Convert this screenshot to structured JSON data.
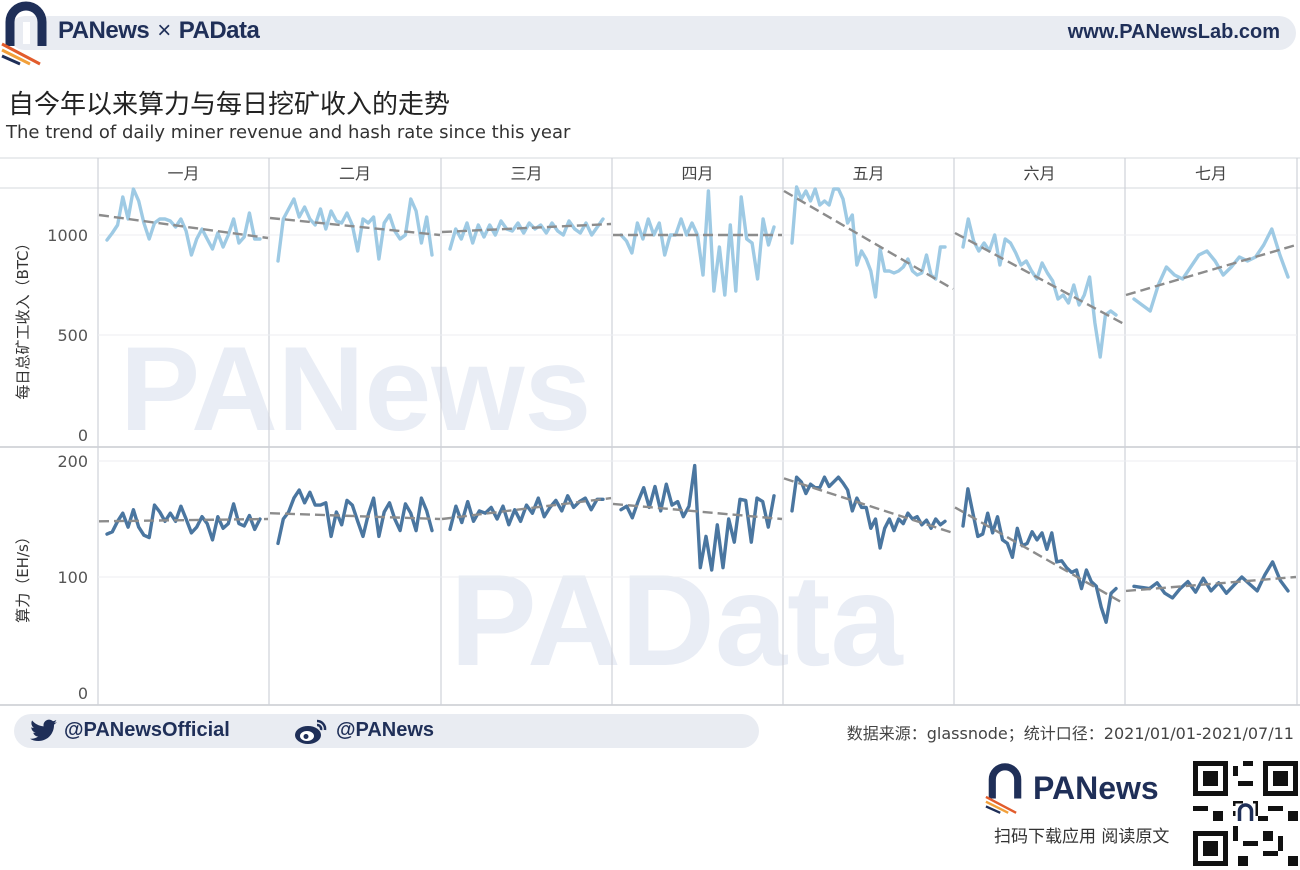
{
  "header": {
    "brand_left": "PANews",
    "brand_sep": "×",
    "brand_right": "PAData",
    "site": "www.PANewsLab.com"
  },
  "title": "自今年以来算力与每日挖矿收入的走势",
  "subtitle": "The trend of daily miner revenue and hash rate since this year",
  "footer": {
    "twitter": "@PANewsOfficial",
    "weibo": "@PANews",
    "source": "数据来源：glassnode；统计口径：2021/01/01-2021/07/11",
    "bottom_brand": "PANews",
    "scan_text": "扫码下载应用  阅读原文"
  },
  "colors": {
    "revenue_line": "#9ecae4",
    "hashrate_line": "#4a76a0",
    "trend_line": "#8c8c8c",
    "brand_navy": "#1f2f58",
    "brand_orange": "#e25c2c"
  },
  "chart_data": {
    "type": "line",
    "months": [
      "一月",
      "二月",
      "三月",
      "四月",
      "五月",
      "六月",
      "七月"
    ],
    "panels": [
      {
        "name": "revenue",
        "ylabel": "每日总矿工收入（BTC）",
        "ylim": [
          0,
          1300
        ],
        "yticks": [
          0,
          500,
          1000
        ],
        "series_by_month": [
          [
            975,
            1010,
            1050,
            1190,
            1080,
            1230,
            1170,
            1060,
            980,
            1060,
            1080,
            1080,
            1070,
            1040,
            1080,
            1020,
            900,
            980,
            1030,
            980,
            930,
            1010,
            940,
            1000,
            1080,
            960,
            990,
            1110,
            980,
            980
          ],
          [
            870,
            1080,
            1130,
            1180,
            1090,
            1140,
            1080,
            1050,
            1130,
            1030,
            1120,
            1070,
            1060,
            1110,
            1050,
            920,
            1080,
            1060,
            1090,
            880,
            1060,
            1100,
            1020,
            980,
            1000,
            1180,
            1120,
            960,
            1090,
            900
          ],
          [
            930,
            1030,
            980,
            1060,
            960,
            1050,
            990,
            1050,
            1000,
            1070,
            1030,
            1020,
            1060,
            1010,
            1060,
            1030,
            1050,
            1010,
            1060,
            1020,
            1000,
            1070,
            1030,
            1010,
            1060,
            1000,
            1040,
            1080
          ],
          [
            1000,
            970,
            910,
            1060,
            980,
            1080,
            1000,
            1060,
            900,
            1000,
            1000,
            1080,
            1000,
            1060,
            1000,
            800,
            1220,
            720,
            940,
            700,
            1050,
            720,
            1190,
            980,
            960,
            780,
            1080,
            950,
            1040
          ],
          [
            960,
            1240,
            1180,
            1220,
            1170,
            1230,
            1150,
            1170,
            1150,
            1230,
            1230,
            1180,
            1060,
            1100,
            850,
            920,
            880,
            820,
            690,
            930,
            820,
            820,
            810,
            820,
            840,
            880,
            820,
            800,
            810,
            900,
            800,
            780,
            940,
            940
          ],
          [
            940,
            1080,
            970,
            920,
            960,
            920,
            1000,
            850,
            980,
            960,
            910,
            850,
            870,
            820,
            780,
            860,
            810,
            770,
            680,
            700,
            660,
            750,
            650,
            700,
            790,
            560,
            390,
            600,
            620,
            600
          ],
          [
            680,
            650,
            620,
            750,
            840,
            800,
            780,
            840,
            900,
            920,
            870,
            800,
            840,
            890,
            870,
            890,
            950,
            1030,
            900,
            790
          ]
        ],
        "trend_by_month": [
          [
            1100,
            985
          ],
          [
            1085,
            1000
          ],
          [
            1015,
            1055
          ],
          [
            1000,
            1000
          ],
          [
            1220,
            730
          ],
          [
            1010,
            555
          ],
          [
            700,
            950
          ]
        ]
      },
      {
        "name": "hashrate",
        "ylabel": "算力（EH/s）",
        "ylim": [
          0,
          212
        ],
        "yticks": [
          0,
          100,
          200
        ],
        "series_by_month": [
          [
            137,
            139,
            148,
            155,
            143,
            158,
            143,
            136,
            134,
            162,
            156,
            148,
            155,
            148,
            161,
            150,
            138,
            143,
            152,
            146,
            132,
            152,
            142,
            146,
            163,
            146,
            144,
            153,
            141,
            150
          ],
          [
            129,
            150,
            156,
            168,
            175,
            164,
            173,
            162,
            162,
            164,
            135,
            156,
            145,
            166,
            162,
            148,
            135,
            154,
            168,
            135,
            156,
            164,
            150,
            140,
            163,
            155,
            140,
            168,
            157,
            140
          ],
          [
            141,
            161,
            147,
            165,
            148,
            157,
            155,
            160,
            150,
            161,
            145,
            158,
            148,
            162,
            155,
            168,
            152,
            160,
            166,
            157,
            170,
            160,
            165,
            168,
            158,
            167,
            167
          ],
          [
            158,
            161,
            151,
            165,
            177,
            160,
            178,
            157,
            180,
            162,
            165,
            152,
            161,
            196,
            108,
            135,
            106,
            145,
            108,
            150,
            130,
            167,
            166,
            130,
            168,
            165,
            143,
            170
          ],
          [
            157,
            186,
            182,
            172,
            180,
            177,
            177,
            186,
            178,
            182,
            186,
            181,
            175,
            157,
            168,
            160,
            160,
            142,
            150,
            125,
            142,
            150,
            140,
            150,
            146,
            155,
            150,
            152,
            145,
            149,
            142,
            150,
            145,
            148
          ],
          [
            144,
            176,
            155,
            135,
            137,
            155,
            138,
            152,
            132,
            129,
            117,
            142,
            127,
            129,
            139,
            132,
            138,
            124,
            138,
            113,
            114,
            108,
            104,
            106,
            90,
            106,
            96,
            92,
            74,
            61,
            86,
            90
          ],
          [
            92,
            91,
            90,
            95,
            86,
            82,
            90,
            96,
            87,
            99,
            88,
            95,
            86,
            93,
            100,
            94,
            88,
            102,
            113,
            97,
            88
          ]
        ],
        "trend_by_month": [
          [
            148,
            150
          ],
          [
            155,
            150
          ],
          [
            150,
            168
          ],
          [
            163,
            150
          ],
          [
            185,
            138
          ],
          [
            160,
            77
          ],
          [
            88,
            100
          ]
        ]
      }
    ]
  }
}
